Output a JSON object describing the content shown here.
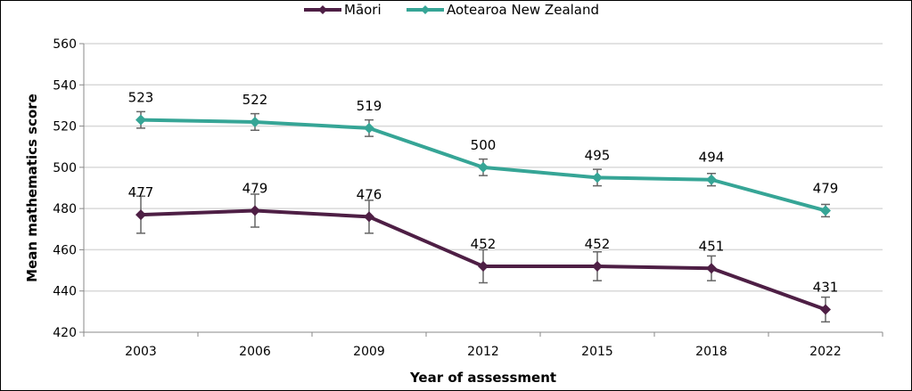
{
  "chart_data": {
    "type": "line",
    "title": "",
    "xlabel": "Year of assessment",
    "ylabel": "Mean mathematics score",
    "categories": [
      "2003",
      "2006",
      "2009",
      "2012",
      "2015",
      "2018",
      "2022"
    ],
    "ylim": [
      420,
      560
    ],
    "yticks": [
      "420",
      "440",
      "460",
      "480",
      "500",
      "520",
      "540",
      "560"
    ],
    "grid": true,
    "legend_position": "top-center",
    "series": [
      {
        "name": "Māori",
        "color": "#4e1f45",
        "values": [
          477,
          479,
          476,
          452,
          452,
          451,
          431
        ],
        "labels": [
          "477",
          "479",
          "476",
          "452",
          "452",
          "451",
          "431"
        ],
        "error": [
          9,
          8,
          8,
          8,
          7,
          6,
          6
        ]
      },
      {
        "name": "Aotearoa New Zealand",
        "color": "#36a596",
        "values": [
          523,
          522,
          519,
          500,
          495,
          494,
          479
        ],
        "labels": [
          "523",
          "522",
          "519",
          "500",
          "495",
          "494",
          "479"
        ],
        "error": [
          4,
          4,
          4,
          4,
          4,
          3,
          3
        ]
      }
    ]
  }
}
